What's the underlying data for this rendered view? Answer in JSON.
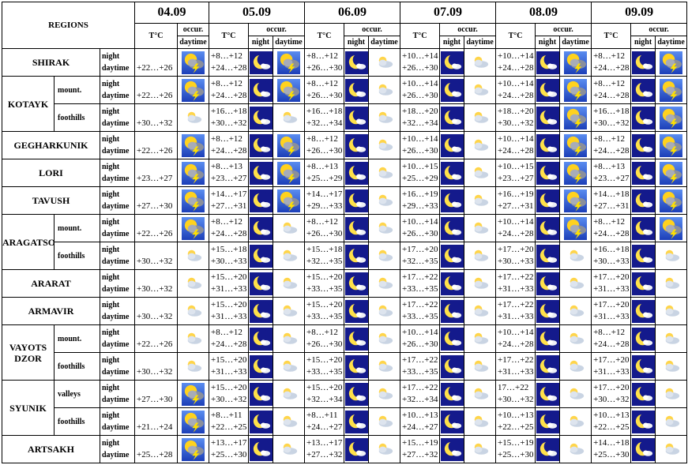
{
  "header": {
    "title": "REGIONS",
    "dates": [
      "04.09",
      "05.09",
      "06.09",
      "07.09",
      "08.09",
      "09.09"
    ],
    "temp": "T°C",
    "occur": "occur.",
    "night": "night",
    "daytime": "daytime"
  },
  "regions": [
    {
      "name": "SHIRAK",
      "rows": [
        {
          "first": "+22…+26",
          "days": [
            [
              "+8…+12",
              "+24…+28"
            ],
            [
              "+8…+12",
              "+26…+30"
            ],
            [
              "+10…+14",
              "+26…+30"
            ],
            [
              "+10…+14",
              "+24…+28"
            ],
            [
              "+8…+12",
              "+24…+28"
            ]
          ]
        }
      ]
    },
    {
      "name": "KOTAYK",
      "rows": [
        {
          "sub": "mount.",
          "first": "+22…+26",
          "days": [
            [
              "+8…+12",
              "+24…+28"
            ],
            [
              "+8…+12",
              "+26…+30"
            ],
            [
              "+10…+14",
              "+26…+30"
            ],
            [
              "+10…+14",
              "+24…+28"
            ],
            [
              "+8…+12",
              "+24…+28"
            ]
          ]
        },
        {
          "sub": "foothills",
          "first": "+30…+32",
          "days": [
            [
              "+16…+18",
              "+30…+32"
            ],
            [
              "+16…+18",
              "+32…+34"
            ],
            [
              "+18…+20",
              "+32…+34"
            ],
            [
              "+18…+20",
              "+30…+32"
            ],
            [
              "+16…+18",
              "+30…+32"
            ]
          ]
        }
      ]
    },
    {
      "name": "GEGHARKUNIK",
      "rows": [
        {
          "first": "+22…+26",
          "days": [
            [
              "+8…+12",
              "+24…+28"
            ],
            [
              "+8…+12",
              "+26…+30"
            ],
            [
              "+10…+14",
              "+26…+30"
            ],
            [
              "+10…+14",
              "+24…+28"
            ],
            [
              "+8…+12",
              "+24…+28"
            ]
          ]
        }
      ]
    },
    {
      "name": "LORI",
      "rows": [
        {
          "first": "+23…+27",
          "days": [
            [
              "+8…+13",
              "+23…+27"
            ],
            [
              "+8…+13",
              "+25…+29"
            ],
            [
              "+10…+15",
              "+25…+29"
            ],
            [
              "+10…+15",
              "+23…+27"
            ],
            [
              "+8…+13",
              "+23…+27"
            ]
          ]
        }
      ]
    },
    {
      "name": "TAVUSH",
      "rows": [
        {
          "first": "+27…+30",
          "days": [
            [
              "+14…+17",
              "+27…+31"
            ],
            [
              "+14…+17",
              "+29…+33"
            ],
            [
              "+16…+19",
              "+29…+33"
            ],
            [
              "+16…+19",
              "+27…+31"
            ],
            [
              "+14…+18",
              "+27…+31"
            ]
          ]
        }
      ]
    },
    {
      "name": "ARAGATSOTN",
      "rows": [
        {
          "sub": "mount.",
          "first": "+22…+26",
          "days": [
            [
              "+8…+12",
              "+24…+28"
            ],
            [
              "+8…+12",
              "+26…+30"
            ],
            [
              "+10…+14",
              "+26…+30"
            ],
            [
              "+10…+14",
              "+24…+28"
            ],
            [
              "+8…+12",
              "+24…+28"
            ]
          ]
        },
        {
          "sub": "foothills",
          "first": "+30…+32",
          "days": [
            [
              "+15…+18",
              "+30…+33"
            ],
            [
              "+15…+18",
              "+32…+35"
            ],
            [
              "+17…+20",
              "+32…+35"
            ],
            [
              "+17…+20",
              "+30…+33"
            ],
            [
              "+16…+18",
              "+30…+33"
            ]
          ]
        }
      ]
    },
    {
      "name": "ARARAT",
      "rows": [
        {
          "first": "+30…+32",
          "days": [
            [
              "+15…+20",
              "+31…+33"
            ],
            [
              "+15…+20",
              "+33…+35"
            ],
            [
              "+17…+22",
              "+33…+35"
            ],
            [
              "+17…+22",
              "+31…+33"
            ],
            [
              "+17…+20",
              "+31…+33"
            ]
          ]
        }
      ]
    },
    {
      "name": "ARMAVIR",
      "rows": [
        {
          "first": "+30…+32",
          "days": [
            [
              "+15…+20",
              "+31…+33"
            ],
            [
              "+15…+20",
              "+33…+35"
            ],
            [
              "+17…+22",
              "+33…+35"
            ],
            [
              "+17…+22",
              "+31…+33"
            ],
            [
              "+17…+20",
              "+31…+33"
            ]
          ]
        }
      ]
    },
    {
      "name": "VAYOTS DZOR",
      "rows": [
        {
          "sub": "mount.",
          "first": "+22…+26",
          "days": [
            [
              "+8…+12",
              "+24…+28"
            ],
            [
              "+8…+12",
              "+26…+30"
            ],
            [
              "+10…+14",
              "+26…+30"
            ],
            [
              "+10…+14",
              "+24…+28"
            ],
            [
              "+8…+12",
              "+24…+28"
            ]
          ]
        },
        {
          "sub": "foothills",
          "first": "+30…+32",
          "days": [
            [
              "+15…+20",
              "+31…+33"
            ],
            [
              "+15…+20",
              "+33…+35"
            ],
            [
              "+17…+22",
              "+33…+35"
            ],
            [
              "+17…+22",
              "+31…+33"
            ],
            [
              "+17…+20",
              "+31…+33"
            ]
          ]
        }
      ]
    },
    {
      "name": "SYUNIK",
      "rows": [
        {
          "sub": "valleys",
          "first": "+27…+30",
          "days": [
            [
              "+15…+20",
              "+30…+32"
            ],
            [
              "+15…+20",
              "+32…+34"
            ],
            [
              "+17…+22",
              "+32…+34"
            ],
            [
              "17…+22",
              "+30…+32"
            ],
            [
              "+17…+20",
              "+30…+32"
            ]
          ]
        },
        {
          "sub": "foothills",
          "first": "+21…+24",
          "days": [
            [
              "+8…+11",
              "+22…+25"
            ],
            [
              "+8…+11",
              "+24…+27"
            ],
            [
              "+10…+13",
              "+24…+27"
            ],
            [
              "+10…+13",
              "+22…+25"
            ],
            [
              "+10…+13",
              "+22…+25"
            ]
          ]
        }
      ]
    },
    {
      "name": "ARTSAKH",
      "rows": [
        {
          "first": "+25…+28",
          "days": [
            [
              "+13…+17",
              "+25…+30"
            ],
            [
              "+13…+17",
              "+27…+32"
            ],
            [
              "+15…+19",
              "+27…+32"
            ],
            [
              "+15…+19",
              "+25…+30"
            ],
            [
              "+14…+18",
              "+25…+30"
            ]
          ]
        }
      ]
    }
  ]
}
